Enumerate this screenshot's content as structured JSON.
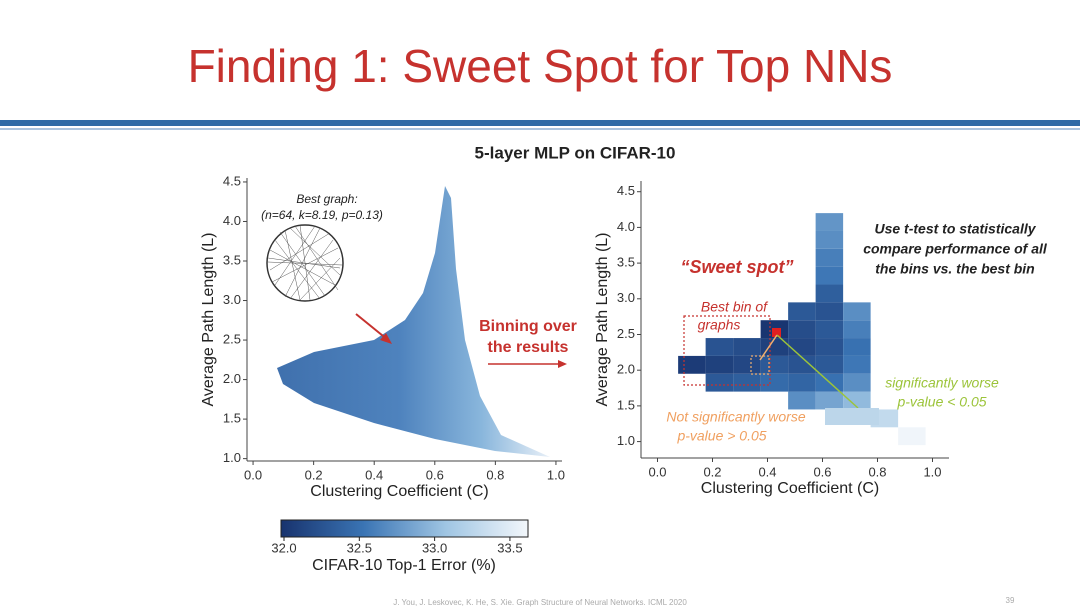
{
  "header": {
    "title": "Finding 1: Sweet Spot for Top NNs"
  },
  "figure_title": "5-layer MLP on CIFAR-10",
  "middle_text": [
    "Binning over",
    "the results"
  ],
  "chart_data": [
    {
      "type": "density",
      "xlabel": "Clustering Coefficient (C)",
      "ylabel": "Average Path Length (L)",
      "xlim": [
        -0.02,
        1.02
      ],
      "ylim": [
        0.97,
        4.55
      ],
      "xticks": [
        {
          "value": 0,
          "label": "0.0"
        },
        0.2,
        0.4,
        0.6,
        0.8,
        {
          "value": 1,
          "label": "1.0"
        }
      ],
      "yticks": [
        {
          "value": 1,
          "label": "1.0"
        },
        1.5,
        {
          "value": 2,
          "label": "2.0"
        },
        2.5,
        {
          "value": 3,
          "label": "3.0"
        },
        3.5,
        {
          "value": 4,
          "label": "4.0"
        },
        4.5
      ],
      "annotations": [
        "Best graph:",
        "(n=64, k=8.19, p=0.13)"
      ]
    },
    {
      "type": "heatmap",
      "xlabel": "Clustering Coefficient (C)",
      "ylabel": "Average Path Length (L)",
      "xlim": [
        -0.06,
        1.06
      ],
      "ylim": [
        0.77,
        4.65
      ],
      "xticks": [
        {
          "value": 0,
          "label": "0.0"
        },
        0.2,
        0.4,
        0.6,
        0.8,
        {
          "value": 1,
          "label": "1.0"
        }
      ],
      "yticks": [
        {
          "value": 1,
          "label": "1.0"
        },
        1.5,
        {
          "value": 2,
          "label": "2.0"
        },
        2.5,
        {
          "value": 3,
          "label": "3.0"
        },
        3.5,
        {
          "value": 4,
          "label": "4.0"
        },
        4.5
      ],
      "x": [
        0.075,
        0.175,
        0.175,
        0.175,
        0.275,
        0.275,
        0.275,
        0.375,
        0.375,
        0.375,
        0.375,
        0.475,
        0.475,
        0.475,
        0.475,
        0.475,
        0.475,
        0.575,
        0.575,
        0.575,
        0.575,
        0.575,
        0.575,
        0.575,
        0.575,
        0.575,
        0.575,
        0.575,
        0.675,
        0.675,
        0.675,
        0.675,
        0.675,
        0.675,
        0.775,
        0.875
      ],
      "y": [
        1.95,
        1.7,
        1.95,
        2.2,
        1.7,
        1.95,
        2.2,
        1.7,
        1.95,
        2.2,
        2.45,
        1.45,
        1.7,
        1.95,
        2.2,
        2.45,
        2.7,
        1.45,
        1.7,
        1.95,
        2.2,
        2.45,
        2.7,
        2.95,
        3.2,
        3.45,
        3.7,
        3.95,
        1.45,
        1.7,
        1.95,
        2.2,
        2.45,
        2.7,
        1.2,
        0.95
      ],
      "values": [
        32.05,
        32.3,
        32.1,
        32.25,
        32.35,
        32.15,
        32.2,
        32.45,
        32.3,
        32.1,
        32.0,
        32.7,
        32.4,
        32.25,
        32.15,
        32.2,
        32.3,
        32.85,
        32.5,
        32.3,
        32.25,
        32.3,
        32.25,
        32.35,
        32.55,
        32.6,
        32.7,
        32.75,
        33.0,
        32.7,
        32.55,
        32.5,
        32.6,
        32.7,
        33.3,
        33.6
      ],
      "annotations": [
        "“Sweet spot”",
        "Best bin of",
        "graphs",
        "Use t-test to statistically",
        "compare performance of all",
        "the bins vs. the best bin",
        "Not significantly worse",
        "p-value > 0.05",
        "significantly worse",
        "p-value < 0.05"
      ]
    }
  ],
  "colorbar": {
    "label": "CIFAR-10 Top-1 Error (%)",
    "lim": [
      31.98,
      33.62
    ],
    "ticks": [
      {
        "value": 32,
        "label": "32.0"
      },
      32.5,
      {
        "value": 33,
        "label": "33.0"
      },
      33.5
    ],
    "colormap": [
      "#18336e",
      "#3a74b4",
      "#9fc5e3",
      "#f3f7fb"
    ]
  },
  "footer": {
    "citation": "J. You, J. Leskovec, K. He, S. Xie. Graph Structure of Neural Networks. ICML 2020",
    "page": "39"
  }
}
